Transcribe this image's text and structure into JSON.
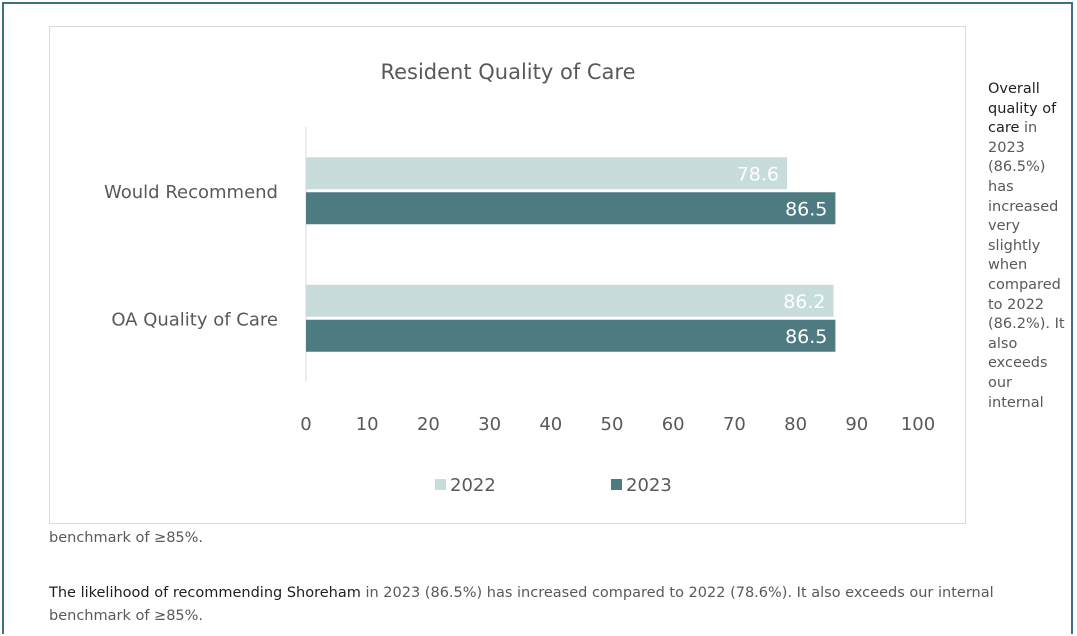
{
  "chart_data": {
    "type": "bar",
    "orientation": "horizontal",
    "title": "Resident Quality of Care",
    "categories": [
      "Would Recommend",
      "OA Quality of Care"
    ],
    "series": [
      {
        "name": "2022",
        "values": [
          78.6,
          86.2
        ],
        "color": "#c8dcdc",
        "label_color": "#ffffff"
      },
      {
        "name": "2023",
        "values": [
          86.5,
          86.5
        ],
        "color": "#4e7a82",
        "label_color": "#ffffff"
      }
    ],
    "xlim": [
      0,
      100
    ],
    "xticks": [
      0,
      10,
      20,
      30,
      40,
      50,
      60,
      70,
      80,
      90,
      100
    ],
    "legend": "bottom",
    "grid": false
  },
  "commentary": {
    "side_bold": "Overall quality of care",
    "side_rest": " in 2023 (86.5%) has increased very slightly when compared to 2022 (86.2%). It also exceeds our internal",
    "continuation": "benchmark of ≥85%.",
    "para_bold": "The likelihood of recommending Shoreham",
    "para_rest": " in 2023 (86.5%) has increased compared to 2022 (78.6%). It also exceeds our internal benchmark of ≥85%."
  },
  "colors": {
    "frame": "#3f6e8c"
  }
}
